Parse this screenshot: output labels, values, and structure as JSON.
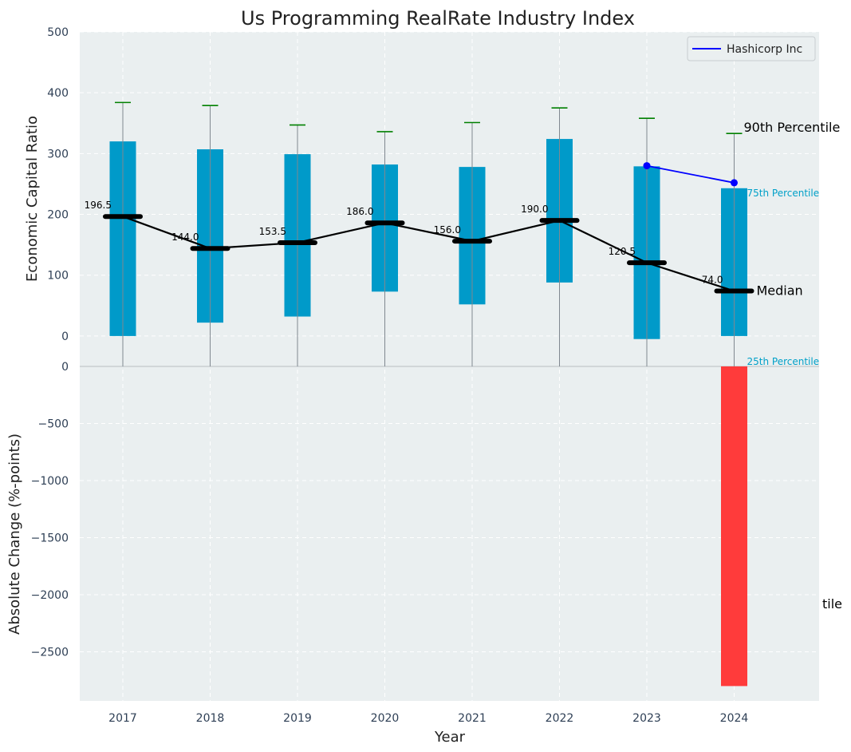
{
  "chart_data": {
    "type": "box-bar",
    "title": "Us Programming RealRate Industry Index",
    "xlabel": "Year",
    "ylabel_top": "Economic Capital Ratio",
    "ylabel_bottom": "Absolute Change (%-points)",
    "categories": [
      "2017",
      "2018",
      "2019",
      "2020",
      "2021",
      "2022",
      "2023",
      "2024"
    ],
    "percentile_10": [
      -10,
      -10,
      -10,
      -10,
      -10,
      -10,
      -10,
      -10
    ],
    "percentile_25": [
      0,
      22,
      32,
      73,
      52,
      88,
      -5,
      0
    ],
    "median": [
      196.5,
      144.0,
      153.5,
      186.0,
      156.0,
      190.0,
      120.5,
      74.0
    ],
    "percentile_75": [
      320,
      307,
      299,
      282,
      278,
      324,
      279,
      243
    ],
    "percentile_90": [
      384,
      379,
      347,
      336,
      351,
      375,
      358,
      333
    ],
    "median_labels": [
      "196.5",
      "144.0",
      "153.5",
      "186.0",
      "156.0",
      "190.0",
      "120.5",
      "74.0"
    ],
    "company_series": {
      "name": "Hashicorp Inc",
      "x": [
        "2023",
        "2024"
      ],
      "values": [
        280,
        252
      ],
      "color": "#0000ff"
    },
    "change_bars": {
      "categories": [
        "2024"
      ],
      "values": [
        -2800
      ],
      "color": "#ff3b3b"
    },
    "annotations": {
      "p90": "90th Percentile",
      "p75": "75th Percentile",
      "median": "Median",
      "p25": "25th Percentile",
      "clipped": "tile"
    },
    "ylim_top": [
      -50,
      500
    ],
    "yticks_top": [
      "500",
      "400",
      "300",
      "200",
      "100",
      "0"
    ],
    "ylim_bottom": [
      -2930,
      0
    ],
    "yticks_bottom": [
      "0",
      "−500",
      "−1000",
      "−1500",
      "−2000",
      "−2500"
    ],
    "legend_position": "top-right",
    "grid": true,
    "colors": {
      "box": "#009ac9",
      "whisker_cap": "#008000",
      "median_line": "#000000",
      "company": "#0000ff",
      "change_bar": "#ff3b3b",
      "plot_bg": "#eaeff0"
    }
  }
}
